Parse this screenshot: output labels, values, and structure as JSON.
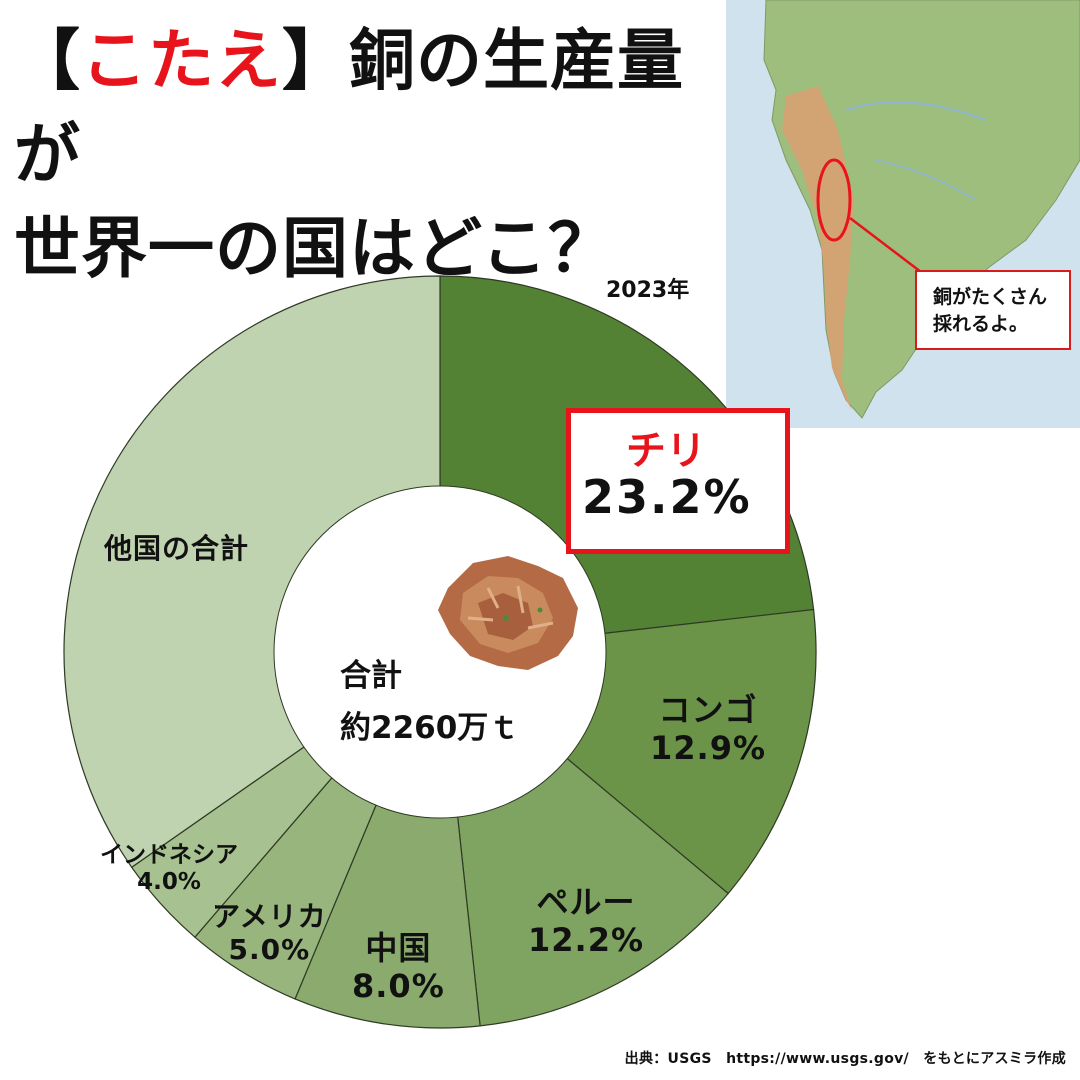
{
  "title": {
    "bracket_open": "【",
    "answer": "こたえ",
    "bracket_close": "】",
    "line1_rest": "銅の生産量が",
    "line2": "世界一の国はどこ？"
  },
  "year_label": "2023年",
  "map_callout": {
    "line1": "銅がたくさん",
    "line2": "採れるよ。"
  },
  "center": {
    "label": "合計",
    "value": "約2260万ｔ"
  },
  "source": "出典：USGS　https://www.usgs.gov/　をもとにアスミラ作成",
  "colors": {
    "accent": "#e8141b",
    "chile": "#548235",
    "congo": "#6b9448",
    "peru": "#7fa360",
    "china": "#8aab6d",
    "usa": "#97b57c",
    "indonesia": "#a7c190",
    "others": "#c0d3b0"
  },
  "chart_data": {
    "type": "pie",
    "style": "donut",
    "title": "",
    "unit": "%",
    "slices": [
      {
        "label": "チリ",
        "value": 23.2,
        "value_label": "23.2%",
        "color": "#548235",
        "highlighted": true
      },
      {
        "label": "コンゴ",
        "value": 12.9,
        "value_label": "12.9%",
        "color": "#6b9448"
      },
      {
        "label": "ペルー",
        "value": 12.2,
        "value_label": "12.2%",
        "color": "#7fa360"
      },
      {
        "label": "中国",
        "value": 8.0,
        "value_label": "8.0%",
        "color": "#8aab6d"
      },
      {
        "label": "アメリカ",
        "value": 5.0,
        "value_label": "5.0%",
        "color": "#97b57c"
      },
      {
        "label": "インドネシア",
        "value": 4.0,
        "value_label": "4.0%",
        "color": "#a7c190"
      },
      {
        "label": "他国の合計",
        "value": 34.7,
        "value_label": "",
        "color": "#c0d3b0"
      }
    ]
  }
}
